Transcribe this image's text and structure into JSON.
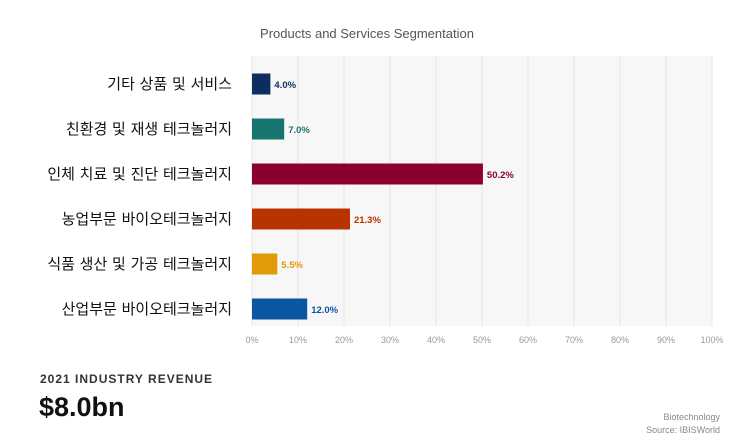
{
  "chart_data": {
    "type": "bar",
    "orientation": "horizontal",
    "title": "Products and Services Segmentation",
    "categories": [
      "기타 상품 및 서비스",
      "친환경  및 재생 테크놀러지",
      "인체 치료 및 진단 테크놀러지",
      "농업부문 바이오테크놀러지",
      "식품 생산 및 가공 테크놀러지",
      "산업부문 바이오테크놀러지"
    ],
    "values": [
      4.0,
      7.0,
      50.2,
      21.3,
      5.5,
      12.0
    ],
    "value_labels": [
      "4.0%",
      "7.0%",
      "50.2%",
      "21.3%",
      "5.5%",
      "12.0%"
    ],
    "colors": [
      "#0c2d5e",
      "#17746f",
      "#8c002f",
      "#b93300",
      "#e09a0a",
      "#0b55a3"
    ],
    "xlim": [
      0,
      100
    ],
    "xticks": [
      "0%",
      "10%",
      "20%",
      "30%",
      "40%",
      "50%",
      "60%",
      "70%",
      "80%",
      "90%",
      "100%"
    ],
    "grid": true
  },
  "revenue": {
    "label": "2021 INDUSTRY REVENUE",
    "value": "$8.0bn"
  },
  "footer": {
    "industry": "Biotechnology",
    "source": "Source: IBISWorld"
  }
}
